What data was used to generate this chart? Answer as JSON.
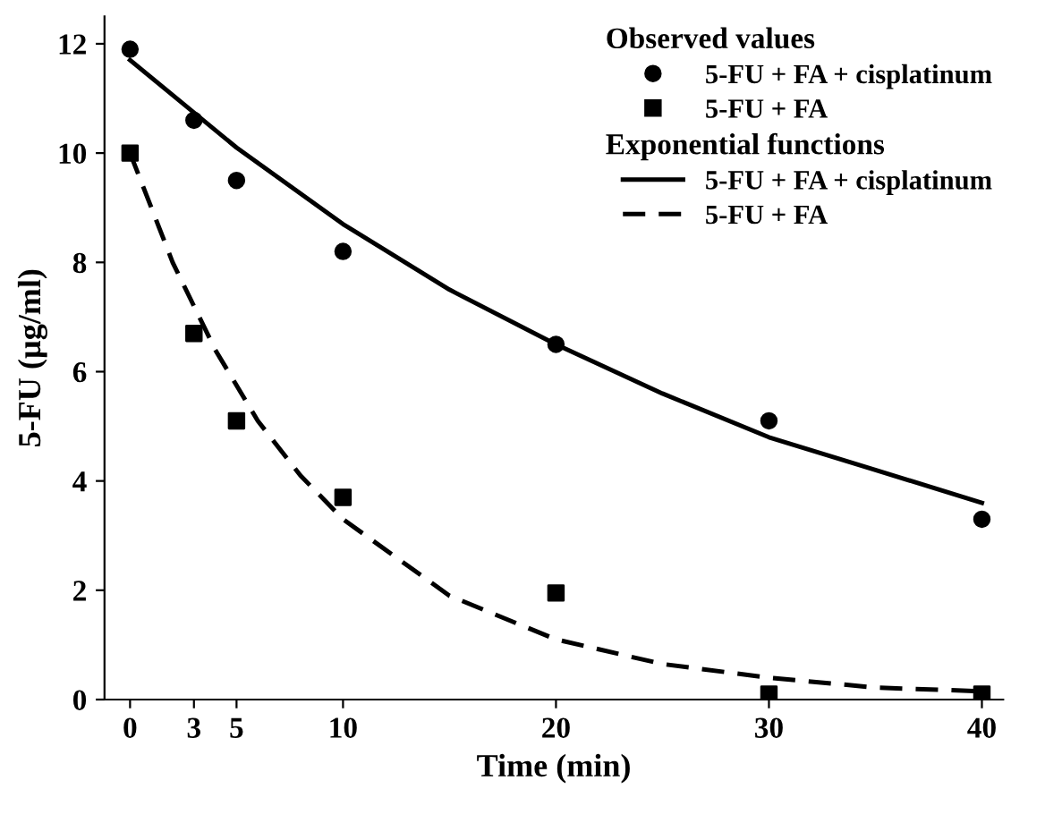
{
  "chart_data": {
    "type": "scatter",
    "xlabel": "Time (min)",
    "ylabel": "5-FU (µg/ml)",
    "annotations": [
      "Observed values",
      "Exponential functions"
    ],
    "series": [
      {
        "name": "5-FU + FA + cisplatinum",
        "marker": "circle",
        "color": "#000000",
        "x": [
          0,
          3,
          5,
          10,
          20,
          30,
          40
        ],
        "values": [
          11.9,
          10.6,
          9.5,
          8.2,
          6.5,
          5.1,
          3.3
        ]
      },
      {
        "name": "5-FU + FA",
        "marker": "square",
        "color": "#000000",
        "x": [
          0,
          3,
          5,
          10,
          20,
          30,
          40
        ],
        "values": [
          10.0,
          6.7,
          5.1,
          3.7,
          1.95,
          0.1,
          0.1
        ]
      },
      {
        "name": "5-FU + FA + cisplatinum",
        "type": "line",
        "line_style": "solid",
        "color": "#000000",
        "x": [
          0,
          5,
          10,
          15,
          20,
          25,
          30,
          35,
          40
        ],
        "values": [
          11.7,
          10.1,
          8.7,
          7.5,
          6.5,
          5.6,
          4.8,
          4.2,
          3.6
        ]
      },
      {
        "name": "5-FU + FA",
        "type": "line",
        "line_style": "dashed",
        "color": "#000000",
        "x": [
          0,
          2,
          4,
          6,
          8,
          10,
          15,
          20,
          25,
          30,
          35,
          40
        ],
        "values": [
          10.0,
          8.0,
          6.4,
          5.1,
          4.1,
          3.3,
          1.9,
          1.1,
          0.65,
          0.4,
          0.22,
          0.15
        ]
      }
    ],
    "xlim": [
      -1.2,
      41
    ],
    "ylim": [
      0,
      12.5
    ],
    "xticks": [
      0,
      3,
      5,
      10,
      20,
      30,
      40
    ],
    "yticks": [
      0,
      2,
      4,
      6,
      8,
      10,
      12
    ],
    "grid": false,
    "legend": "top right"
  }
}
